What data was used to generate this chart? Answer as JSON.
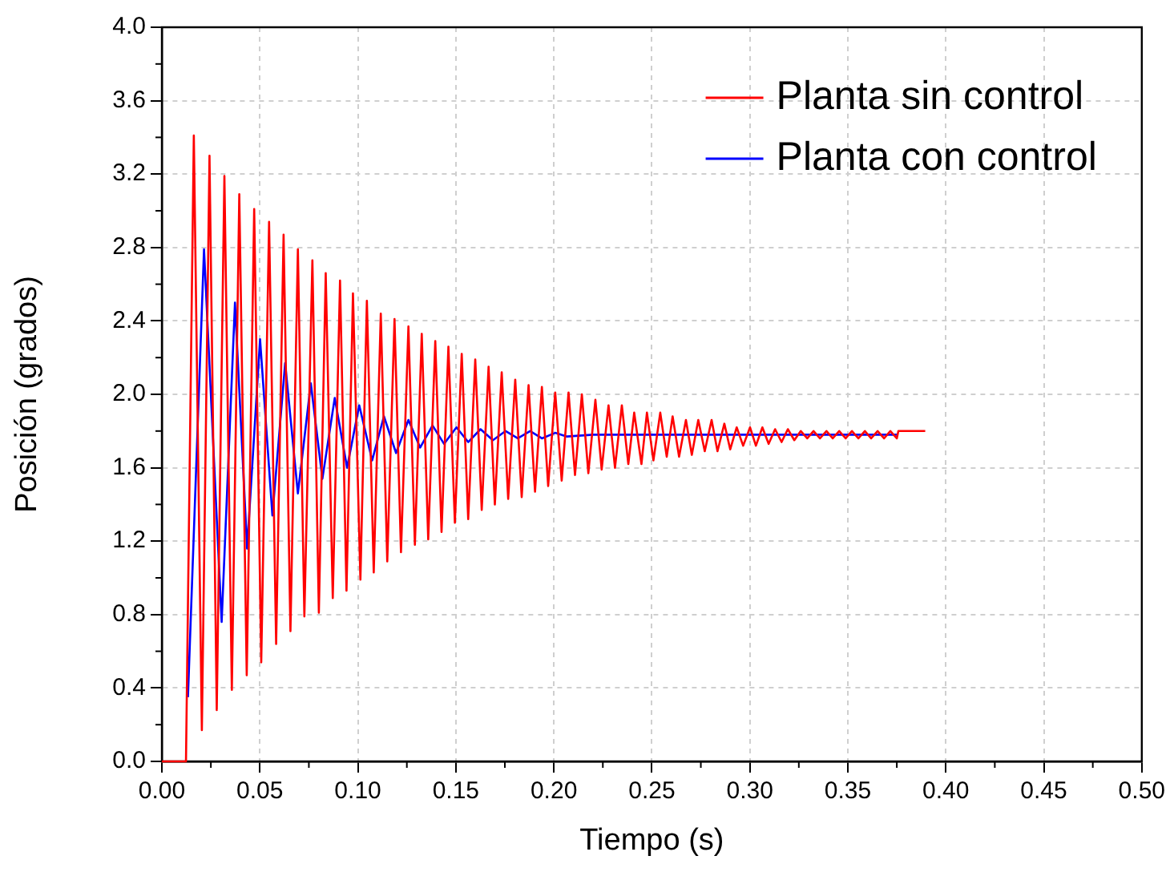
{
  "chart_data": {
    "type": "line",
    "xlabel": "Tiempo (s)",
    "ylabel": "Posición (grados)",
    "xlim": [
      0,
      0.5
    ],
    "ylim": [
      0,
      4
    ],
    "xticks": [
      {
        "value": 0,
        "label": "0.00"
      },
      {
        "value": 0.05,
        "label": "0.05"
      },
      {
        "value": 0.1,
        "label": "0.10"
      },
      {
        "value": 0.15,
        "label": "0.15"
      },
      {
        "value": 0.2,
        "label": "0.20"
      },
      {
        "value": 0.25,
        "label": "0.25"
      },
      {
        "value": 0.3,
        "label": "0.30"
      },
      {
        "value": 0.35,
        "label": "0.35"
      },
      {
        "value": 0.4,
        "label": "0.40"
      },
      {
        "value": 0.45,
        "label": "0.45"
      },
      {
        "value": 0.5,
        "label": "0.50"
      }
    ],
    "yticks": [
      {
        "value": 0,
        "label": "0.0"
      },
      {
        "value": 0.4,
        "label": "0.4"
      },
      {
        "value": 0.8,
        "label": "0.8"
      },
      {
        "value": 1.2,
        "label": "1.2"
      },
      {
        "value": 1.6,
        "label": "1.6"
      },
      {
        "value": 2,
        "label": "2.0"
      },
      {
        "value": 2.4,
        "label": "2.4"
      },
      {
        "value": 2.8,
        "label": "2.8"
      },
      {
        "value": 3.2,
        "label": "3.2"
      },
      {
        "value": 3.6,
        "label": "3.6"
      },
      {
        "value": 4,
        "label": "4.0"
      }
    ],
    "grid": true,
    "legend": "top right",
    "marker": "none",
    "line_style": "solid",
    "series": [
      {
        "name": "Planta sin control",
        "color": "#ff0000",
        "x": [
          0,
          0.0123,
          0.0163,
          0.0204,
          0.0243,
          0.028,
          0.0319,
          0.0357,
          0.0395,
          0.0433,
          0.0471,
          0.0507,
          0.0547,
          0.0583,
          0.0621,
          0.0656,
          0.0694,
          0.0727,
          0.0768,
          0.0801,
          0.0836,
          0.0872,
          0.0909,
          0.0942,
          0.0975,
          0.1013,
          0.1046,
          0.1081,
          0.1117,
          0.115,
          0.1187,
          0.122,
          0.1258,
          0.1291,
          0.1326,
          0.1359,
          0.1395,
          0.1427,
          0.1462,
          0.1495,
          0.153,
          0.1563,
          0.1599,
          0.1632,
          0.1667,
          0.1699,
          0.1734,
          0.1767,
          0.1803,
          0.1836,
          0.1871,
          0.1904,
          0.1939,
          0.1971,
          0.2007,
          0.204,
          0.2075,
          0.2108,
          0.2143,
          0.2176,
          0.2212,
          0.2244,
          0.2279,
          0.2312,
          0.2347,
          0.238,
          0.241,
          0.2447,
          0.2475,
          0.2508,
          0.2543,
          0.2576,
          0.2606,
          0.2639,
          0.2674,
          0.2704,
          0.2737,
          0.277,
          0.2805,
          0.2835,
          0.287,
          0.29,
          0.2933,
          0.2966,
          0.3001,
          0.3031,
          0.3064,
          0.3096,
          0.3129,
          0.3162,
          0.3194,
          0.3227,
          0.326,
          0.3293,
          0.3325,
          0.3358,
          0.3391,
          0.3423,
          0.3456,
          0.3489,
          0.3521,
          0.3554,
          0.3587,
          0.3619,
          0.3652,
          0.3685,
          0.3717,
          0.375,
          0.3758,
          0.3895
        ],
        "values": [
          0,
          0,
          3.41,
          0.17,
          3.3,
          0.28,
          3.19,
          0.39,
          3.09,
          0.47,
          3.01,
          0.54,
          2.94,
          0.64,
          2.87,
          0.71,
          2.79,
          0.79,
          2.73,
          0.81,
          2.66,
          0.89,
          2.62,
          0.93,
          2.55,
          0.99,
          2.51,
          1.03,
          2.44,
          1.09,
          2.41,
          1.14,
          2.37,
          1.18,
          2.33,
          1.21,
          2.29,
          1.25,
          2.26,
          1.3,
          2.22,
          1.32,
          2.19,
          1.37,
          2.15,
          1.4,
          2.12,
          1.43,
          2.08,
          1.44,
          2.05,
          1.47,
          2.04,
          1.5,
          2.01,
          1.53,
          2.01,
          1.56,
          2,
          1.57,
          1.97,
          1.59,
          1.94,
          1.6,
          1.94,
          1.62,
          1.9,
          1.62,
          1.9,
          1.64,
          1.9,
          1.66,
          1.88,
          1.66,
          1.86,
          1.67,
          1.86,
          1.69,
          1.86,
          1.69,
          1.84,
          1.7,
          1.82,
          1.72,
          1.82,
          1.72,
          1.82,
          1.73,
          1.81,
          1.74,
          1.81,
          1.75,
          1.8,
          1.76,
          1.8,
          1.76,
          1.8,
          1.76,
          1.8,
          1.76,
          1.8,
          1.76,
          1.8,
          1.76,
          1.8,
          1.76,
          1.8,
          1.76,
          1.8,
          1.8
        ]
      },
      {
        "name": "Planta con control",
        "color": "#0000ff",
        "x": [
          0.0133,
          0.0215,
          0.0305,
          0.0373,
          0.0435,
          0.0501,
          0.0564,
          0.0629,
          0.0694,
          0.076,
          0.0819,
          0.0882,
          0.0945,
          0.1007,
          0.1073,
          0.1133,
          0.1195,
          0.1258,
          0.1318,
          0.1381,
          0.144,
          0.1503,
          0.1563,
          0.1626,
          0.1689,
          0.1754,
          0.1816,
          0.1879,
          0.1939,
          0.2007,
          0.2067,
          0.22,
          0.375
        ],
        "values": [
          0.35,
          2.79,
          0.76,
          2.5,
          1.16,
          2.3,
          1.34,
          2.17,
          1.46,
          2.06,
          1.54,
          1.98,
          1.6,
          1.94,
          1.64,
          1.88,
          1.68,
          1.86,
          1.71,
          1.83,
          1.73,
          1.82,
          1.74,
          1.81,
          1.75,
          1.8,
          1.76,
          1.8,
          1.76,
          1.79,
          1.77,
          1.78,
          1.78
        ]
      }
    ]
  }
}
